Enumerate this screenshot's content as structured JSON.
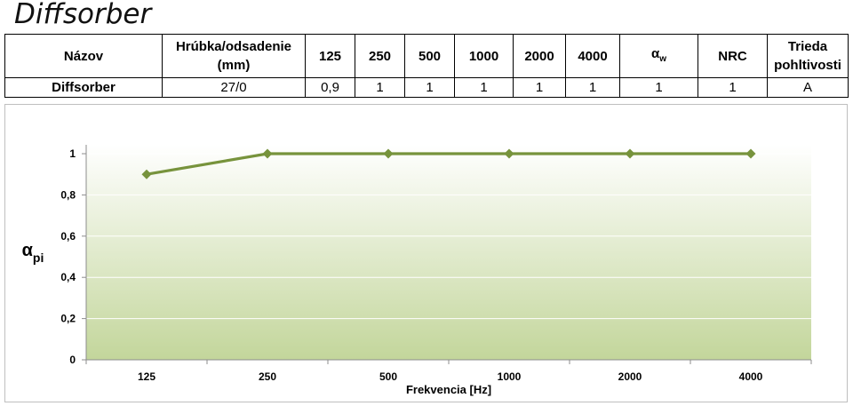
{
  "title": "Diffsorber",
  "table": {
    "headers": [
      "Názov",
      "Hrúbka/odsadenie (mm)",
      "125",
      "250",
      "500",
      "1000",
      "2000",
      "4000",
      "αw",
      "NRC",
      "Trieda pohltivosti"
    ],
    "alpha_symbol": "α",
    "alpha_subscript": "w",
    "row": {
      "name": "Diffsorber",
      "thickness": "27/0",
      "values": [
        "0,9",
        "1",
        "1",
        "1",
        "1",
        "1"
      ],
      "alpha_w": "1",
      "nrc": "1",
      "class": "A"
    }
  },
  "chart_data": {
    "type": "line",
    "categories": [
      "125",
      "250",
      "500",
      "1000",
      "2000",
      "4000"
    ],
    "series": [
      {
        "values": [
          0.9,
          1,
          1,
          1,
          1,
          1
        ]
      }
    ],
    "xlabel": "Frekvencia [Hz]",
    "ylabel_symbol": "α",
    "ylabel_subscript": "pi",
    "ylim": [
      0,
      1
    ],
    "yticks": [
      "0",
      "0,2",
      "0,4",
      "0,6",
      "0,8",
      "1"
    ],
    "grid": true,
    "line_color": "#77933c",
    "gradient_top": "#ffffff",
    "gradient_bottom": "#c3d69b"
  }
}
